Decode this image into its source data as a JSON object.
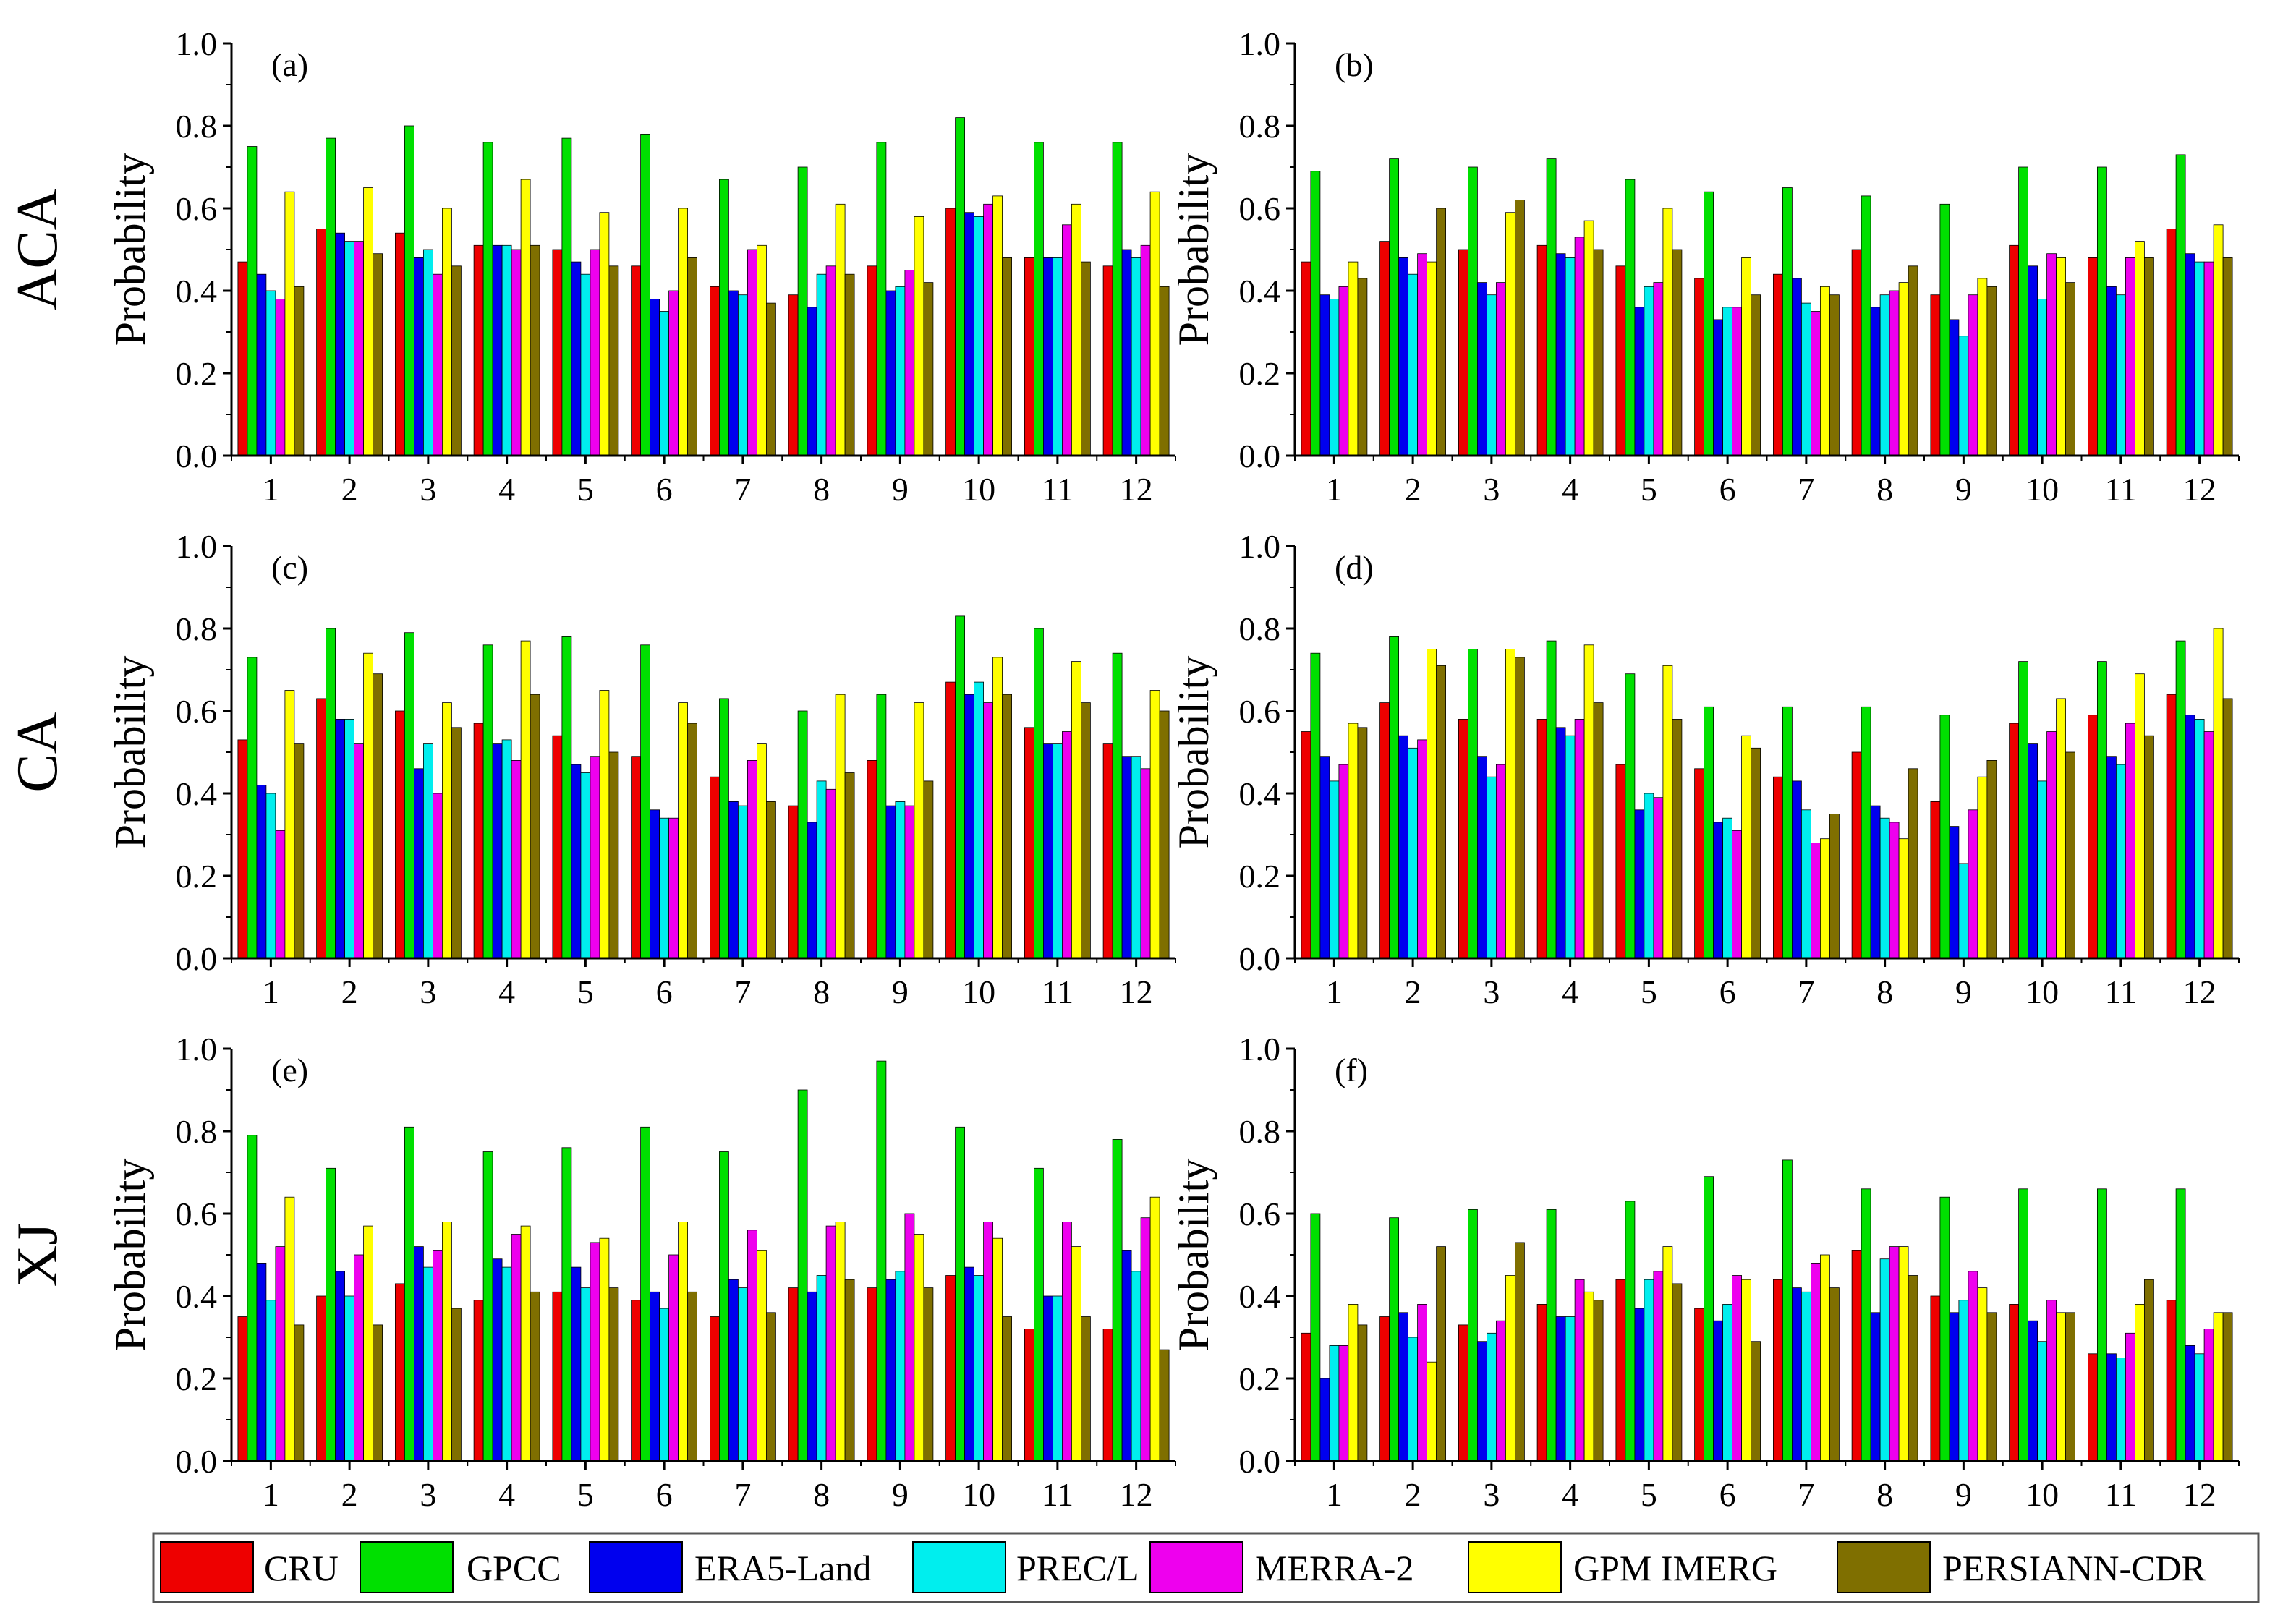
{
  "series_names": [
    "CRU",
    "GPCC",
    "ERA5-Land",
    "PREC/L",
    "MERRA-2",
    "GPM IMERG",
    "PERSIANN-CDR"
  ],
  "series_colors": [
    "#ee0000",
    "#00e000",
    "#0000ee",
    "#00eeee",
    "#ee00ee",
    "#ffff00",
    "#7f6f00"
  ],
  "regions": [
    "ACA",
    "CA",
    "XJ"
  ],
  "ylabel": "Probability",
  "legend_position": "bottom",
  "chart_data": [
    {
      "type": "bar",
      "panel": "(a)",
      "ylim": [
        0,
        1.0
      ],
      "yticks": [
        "0.0",
        "0.2",
        "0.4",
        "0.6",
        "0.8",
        "1.0"
      ],
      "categories": [
        "1",
        "2",
        "3",
        "4",
        "5",
        "6",
        "7",
        "8",
        "9",
        "10",
        "11",
        "12"
      ],
      "series": [
        {
          "name": "CRU",
          "values": [
            0.47,
            0.55,
            0.54,
            0.51,
            0.5,
            0.46,
            0.41,
            0.39,
            0.46,
            0.6,
            0.48,
            0.46
          ]
        },
        {
          "name": "GPCC",
          "values": [
            0.75,
            0.77,
            0.8,
            0.76,
            0.77,
            0.78,
            0.67,
            0.7,
            0.76,
            0.82,
            0.76,
            0.76
          ]
        },
        {
          "name": "ERA5-Land",
          "values": [
            0.44,
            0.54,
            0.48,
            0.51,
            0.47,
            0.38,
            0.4,
            0.36,
            0.4,
            0.59,
            0.48,
            0.5
          ]
        },
        {
          "name": "PREC/L",
          "values": [
            0.4,
            0.52,
            0.5,
            0.51,
            0.44,
            0.35,
            0.39,
            0.44,
            0.41,
            0.58,
            0.48,
            0.48
          ]
        },
        {
          "name": "MERRA-2",
          "values": [
            0.38,
            0.52,
            0.44,
            0.5,
            0.5,
            0.4,
            0.5,
            0.46,
            0.45,
            0.61,
            0.56,
            0.51
          ]
        },
        {
          "name": "GPM IMERG",
          "values": [
            0.64,
            0.65,
            0.6,
            0.67,
            0.59,
            0.6,
            0.51,
            0.61,
            0.58,
            0.63,
            0.61,
            0.64
          ]
        },
        {
          "name": "PERSIANN-CDR",
          "values": [
            0.41,
            0.49,
            0.46,
            0.51,
            0.46,
            0.48,
            0.37,
            0.44,
            0.42,
            0.48,
            0.47,
            0.41
          ]
        }
      ]
    },
    {
      "type": "bar",
      "panel": "(b)",
      "ylim": [
        0,
        1.0
      ],
      "yticks": [
        "0.0",
        "0.2",
        "0.4",
        "0.6",
        "0.8",
        "1.0"
      ],
      "categories": [
        "1",
        "2",
        "3",
        "4",
        "5",
        "6",
        "7",
        "8",
        "9",
        "10",
        "11",
        "12"
      ],
      "series": [
        {
          "name": "CRU",
          "values": [
            0.47,
            0.52,
            0.5,
            0.51,
            0.46,
            0.43,
            0.44,
            0.5,
            0.39,
            0.51,
            0.48,
            0.55
          ]
        },
        {
          "name": "GPCC",
          "values": [
            0.69,
            0.72,
            0.7,
            0.72,
            0.67,
            0.64,
            0.65,
            0.63,
            0.61,
            0.7,
            0.7,
            0.73
          ]
        },
        {
          "name": "ERA5-Land",
          "values": [
            0.39,
            0.48,
            0.42,
            0.49,
            0.36,
            0.33,
            0.43,
            0.36,
            0.33,
            0.46,
            0.41,
            0.49
          ]
        },
        {
          "name": "PREC/L",
          "values": [
            0.38,
            0.44,
            0.39,
            0.48,
            0.41,
            0.36,
            0.37,
            0.39,
            0.29,
            0.38,
            0.39,
            0.47
          ]
        },
        {
          "name": "MERRA-2",
          "values": [
            0.41,
            0.49,
            0.42,
            0.53,
            0.42,
            0.36,
            0.35,
            0.4,
            0.39,
            0.49,
            0.48,
            0.47
          ]
        },
        {
          "name": "GPM IMERG",
          "values": [
            0.47,
            0.47,
            0.59,
            0.57,
            0.6,
            0.48,
            0.41,
            0.42,
            0.43,
            0.48,
            0.52,
            0.56
          ]
        },
        {
          "name": "PERSIANN-CDR",
          "values": [
            0.43,
            0.6,
            0.62,
            0.5,
            0.5,
            0.39,
            0.39,
            0.46,
            0.41,
            0.42,
            0.48,
            0.48
          ]
        }
      ]
    },
    {
      "type": "bar",
      "panel": "(c)",
      "ylim": [
        0,
        1.0
      ],
      "yticks": [
        "0.0",
        "0.2",
        "0.4",
        "0.6",
        "0.8",
        "1.0"
      ],
      "categories": [
        "1",
        "2",
        "3",
        "4",
        "5",
        "6",
        "7",
        "8",
        "9",
        "10",
        "11",
        "12"
      ],
      "series": [
        {
          "name": "CRU",
          "values": [
            0.53,
            0.63,
            0.6,
            0.57,
            0.54,
            0.49,
            0.44,
            0.37,
            0.48,
            0.67,
            0.56,
            0.52
          ]
        },
        {
          "name": "GPCC",
          "values": [
            0.73,
            0.8,
            0.79,
            0.76,
            0.78,
            0.76,
            0.63,
            0.6,
            0.64,
            0.83,
            0.8,
            0.74
          ]
        },
        {
          "name": "ERA5-Land",
          "values": [
            0.42,
            0.58,
            0.46,
            0.52,
            0.47,
            0.36,
            0.38,
            0.33,
            0.37,
            0.64,
            0.52,
            0.49
          ]
        },
        {
          "name": "PREC/L",
          "values": [
            0.4,
            0.58,
            0.52,
            0.53,
            0.45,
            0.34,
            0.37,
            0.43,
            0.38,
            0.67,
            0.52,
            0.49
          ]
        },
        {
          "name": "MERRA-2",
          "values": [
            0.31,
            0.52,
            0.4,
            0.48,
            0.49,
            0.34,
            0.48,
            0.41,
            0.37,
            0.62,
            0.55,
            0.46
          ]
        },
        {
          "name": "GPM IMERG",
          "values": [
            0.65,
            0.74,
            0.62,
            0.77,
            0.65,
            0.62,
            0.52,
            0.64,
            0.62,
            0.73,
            0.72,
            0.65
          ]
        },
        {
          "name": "PERSIANN-CDR",
          "values": [
            0.52,
            0.69,
            0.56,
            0.64,
            0.5,
            0.57,
            0.38,
            0.45,
            0.43,
            0.64,
            0.62,
            0.6
          ]
        }
      ]
    },
    {
      "type": "bar",
      "panel": "(d)",
      "ylim": [
        0,
        1.0
      ],
      "yticks": [
        "0.0",
        "0.2",
        "0.4",
        "0.6",
        "0.8",
        "1.0"
      ],
      "categories": [
        "1",
        "2",
        "3",
        "4",
        "5",
        "6",
        "7",
        "8",
        "9",
        "10",
        "11",
        "12"
      ],
      "series": [
        {
          "name": "CRU",
          "values": [
            0.55,
            0.62,
            0.58,
            0.58,
            0.47,
            0.46,
            0.44,
            0.5,
            0.38,
            0.57,
            0.59,
            0.64
          ]
        },
        {
          "name": "GPCC",
          "values": [
            0.74,
            0.78,
            0.75,
            0.77,
            0.69,
            0.61,
            0.61,
            0.61,
            0.59,
            0.72,
            0.72,
            0.77
          ]
        },
        {
          "name": "ERA5-Land",
          "values": [
            0.49,
            0.54,
            0.49,
            0.56,
            0.36,
            0.33,
            0.43,
            0.37,
            0.32,
            0.52,
            0.49,
            0.59
          ]
        },
        {
          "name": "PREC/L",
          "values": [
            0.43,
            0.51,
            0.44,
            0.54,
            0.4,
            0.34,
            0.36,
            0.34,
            0.23,
            0.43,
            0.47,
            0.58
          ]
        },
        {
          "name": "MERRA-2",
          "values": [
            0.47,
            0.53,
            0.47,
            0.58,
            0.39,
            0.31,
            0.28,
            0.33,
            0.36,
            0.55,
            0.57,
            0.55
          ]
        },
        {
          "name": "GPM IMERG",
          "values": [
            0.57,
            0.75,
            0.75,
            0.76,
            0.71,
            0.54,
            0.29,
            0.29,
            0.44,
            0.63,
            0.69,
            0.8
          ]
        },
        {
          "name": "PERSIANN-CDR",
          "values": [
            0.56,
            0.71,
            0.73,
            0.62,
            0.58,
            0.51,
            0.35,
            0.46,
            0.48,
            0.5,
            0.54,
            0.63
          ]
        }
      ]
    },
    {
      "type": "bar",
      "panel": "(e)",
      "ylim": [
        0,
        1.0
      ],
      "yticks": [
        "0.0",
        "0.2",
        "0.4",
        "0.6",
        "0.8",
        "1.0"
      ],
      "categories": [
        "1",
        "2",
        "3",
        "4",
        "5",
        "6",
        "7",
        "8",
        "9",
        "10",
        "11",
        "12"
      ],
      "series": [
        {
          "name": "CRU",
          "values": [
            0.35,
            0.4,
            0.43,
            0.39,
            0.41,
            0.39,
            0.35,
            0.42,
            0.42,
            0.45,
            0.32,
            0.32
          ]
        },
        {
          "name": "GPCC",
          "values": [
            0.79,
            0.71,
            0.81,
            0.75,
            0.76,
            0.81,
            0.75,
            0.9,
            0.97,
            0.81,
            0.71,
            0.78
          ]
        },
        {
          "name": "ERA5-Land",
          "values": [
            0.48,
            0.46,
            0.52,
            0.49,
            0.47,
            0.41,
            0.44,
            0.41,
            0.44,
            0.47,
            0.4,
            0.51
          ]
        },
        {
          "name": "PREC/L",
          "values": [
            0.39,
            0.4,
            0.47,
            0.47,
            0.42,
            0.37,
            0.42,
            0.45,
            0.46,
            0.45,
            0.4,
            0.46
          ]
        },
        {
          "name": "MERRA-2",
          "values": [
            0.52,
            0.5,
            0.51,
            0.55,
            0.53,
            0.5,
            0.56,
            0.57,
            0.6,
            0.58,
            0.58,
            0.59
          ]
        },
        {
          "name": "GPM IMERG",
          "values": [
            0.64,
            0.57,
            0.58,
            0.57,
            0.54,
            0.58,
            0.51,
            0.58,
            0.55,
            0.54,
            0.52,
            0.64
          ]
        },
        {
          "name": "PERSIANN-CDR",
          "values": [
            0.33,
            0.33,
            0.37,
            0.41,
            0.42,
            0.41,
            0.36,
            0.44,
            0.42,
            0.35,
            0.35,
            0.27
          ]
        }
      ]
    },
    {
      "type": "bar",
      "panel": "(f)",
      "ylim": [
        0,
        1.0
      ],
      "yticks": [
        "0.0",
        "0.2",
        "0.4",
        "0.6",
        "0.8",
        "1.0"
      ],
      "categories": [
        "1",
        "2",
        "3",
        "4",
        "5",
        "6",
        "7",
        "8",
        "9",
        "10",
        "11",
        "12"
      ],
      "series": [
        {
          "name": "CRU",
          "values": [
            0.31,
            0.35,
            0.33,
            0.38,
            0.44,
            0.37,
            0.44,
            0.51,
            0.4,
            0.38,
            0.26,
            0.39
          ]
        },
        {
          "name": "GPCC",
          "values": [
            0.6,
            0.59,
            0.61,
            0.61,
            0.63,
            0.69,
            0.73,
            0.66,
            0.64,
            0.66,
            0.66,
            0.66
          ]
        },
        {
          "name": "ERA5-Land",
          "values": [
            0.2,
            0.36,
            0.29,
            0.35,
            0.37,
            0.34,
            0.42,
            0.36,
            0.36,
            0.34,
            0.26,
            0.28
          ]
        },
        {
          "name": "PREC/L",
          "values": [
            0.28,
            0.3,
            0.31,
            0.35,
            0.44,
            0.38,
            0.41,
            0.49,
            0.39,
            0.29,
            0.25,
            0.26
          ]
        },
        {
          "name": "MERRA-2",
          "values": [
            0.28,
            0.38,
            0.34,
            0.44,
            0.46,
            0.45,
            0.48,
            0.52,
            0.46,
            0.39,
            0.31,
            0.32
          ]
        },
        {
          "name": "GPM IMERG",
          "values": [
            0.38,
            0.24,
            0.45,
            0.41,
            0.52,
            0.44,
            0.5,
            0.52,
            0.42,
            0.36,
            0.38,
            0.36
          ]
        },
        {
          "name": "PERSIANN-CDR",
          "values": [
            0.33,
            0.52,
            0.53,
            0.39,
            0.43,
            0.29,
            0.42,
            0.45,
            0.36,
            0.36,
            0.44,
            0.36
          ]
        }
      ]
    }
  ]
}
